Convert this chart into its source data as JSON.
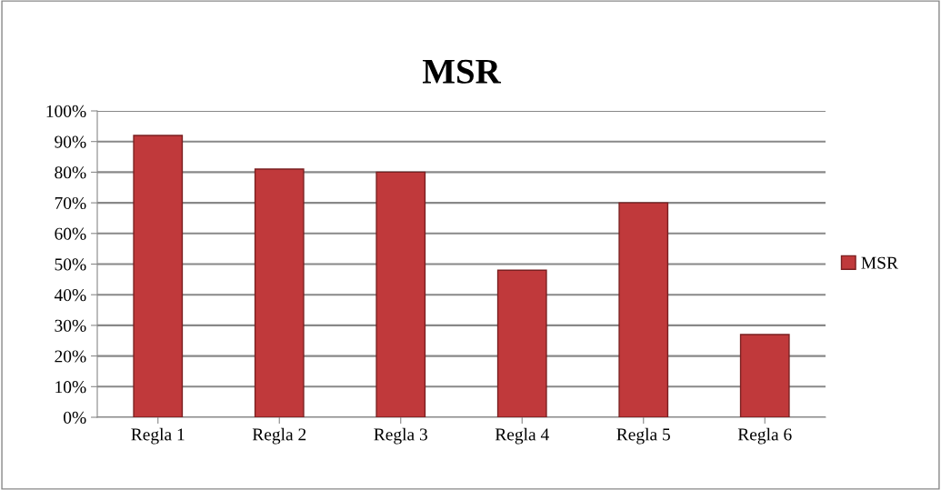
{
  "chart_data": {
    "type": "bar",
    "title": "MSR",
    "categories": [
      "Regla 1",
      "Regla 2",
      "Regla 3",
      "Regla 4",
      "Regla 5",
      "Regla 6"
    ],
    "series": [
      {
        "name": "MSR",
        "color": "#c0393b",
        "values": [
          92,
          81,
          80,
          48,
          70,
          27
        ]
      }
    ],
    "ylim": [
      0,
      100
    ],
    "yticks": [
      {
        "value": 0,
        "label": "0%"
      },
      {
        "value": 10,
        "label": "10%"
      },
      {
        "value": 20,
        "label": "20%"
      },
      {
        "value": 30,
        "label": "30%"
      },
      {
        "value": 40,
        "label": "40%"
      },
      {
        "value": 50,
        "label": "50%"
      },
      {
        "value": 60,
        "label": "60%"
      },
      {
        "value": 70,
        "label": "70%"
      },
      {
        "value": 80,
        "label": "80%"
      },
      {
        "value": 90,
        "label": "90%"
      },
      {
        "value": 100,
        "label": "100%"
      }
    ],
    "grid": "y",
    "legend": "right"
  }
}
